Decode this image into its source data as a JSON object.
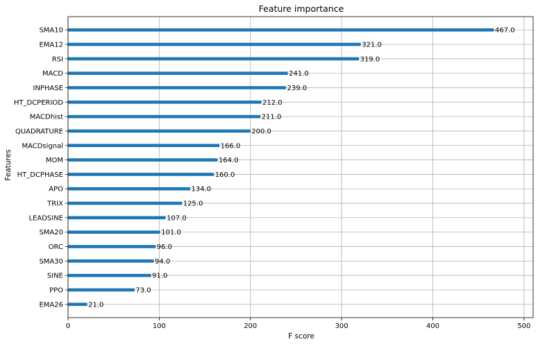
{
  "chart_data": {
    "type": "bar",
    "orientation": "horizontal",
    "title": "Feature importance",
    "xlabel": "F score",
    "ylabel": "Features",
    "xlim": [
      0,
      510
    ],
    "xticks": [
      0,
      100,
      200,
      300,
      400,
      500
    ],
    "grid": true,
    "bar_color": "#1f77b4",
    "categories": [
      "SMA10",
      "EMA12",
      "RSI",
      "MACD",
      "INPHASE",
      "HT_DCPERIOD",
      "MACDhist",
      "QUADRATURE",
      "MACDsignal",
      "MOM",
      "HT_DCPHASE",
      "APO",
      "TRIX",
      "LEADSINE",
      "SMA20",
      "ORC",
      "SMA30",
      "SINE",
      "PPO",
      "EMA26"
    ],
    "values": [
      467,
      321,
      319,
      241,
      239,
      212,
      211,
      200,
      166,
      164,
      160,
      134,
      125,
      107,
      101,
      96,
      94,
      91,
      73,
      21
    ],
    "value_labels": [
      "467.0",
      "321.0",
      "319.0",
      "241.0",
      "239.0",
      "212.0",
      "211.0",
      "200.0",
      "166.0",
      "164.0",
      "160.0",
      "134.0",
      "125.0",
      "107.0",
      "101.0",
      "96.0",
      "94.0",
      "91.0",
      "73.0",
      "21.0"
    ]
  }
}
